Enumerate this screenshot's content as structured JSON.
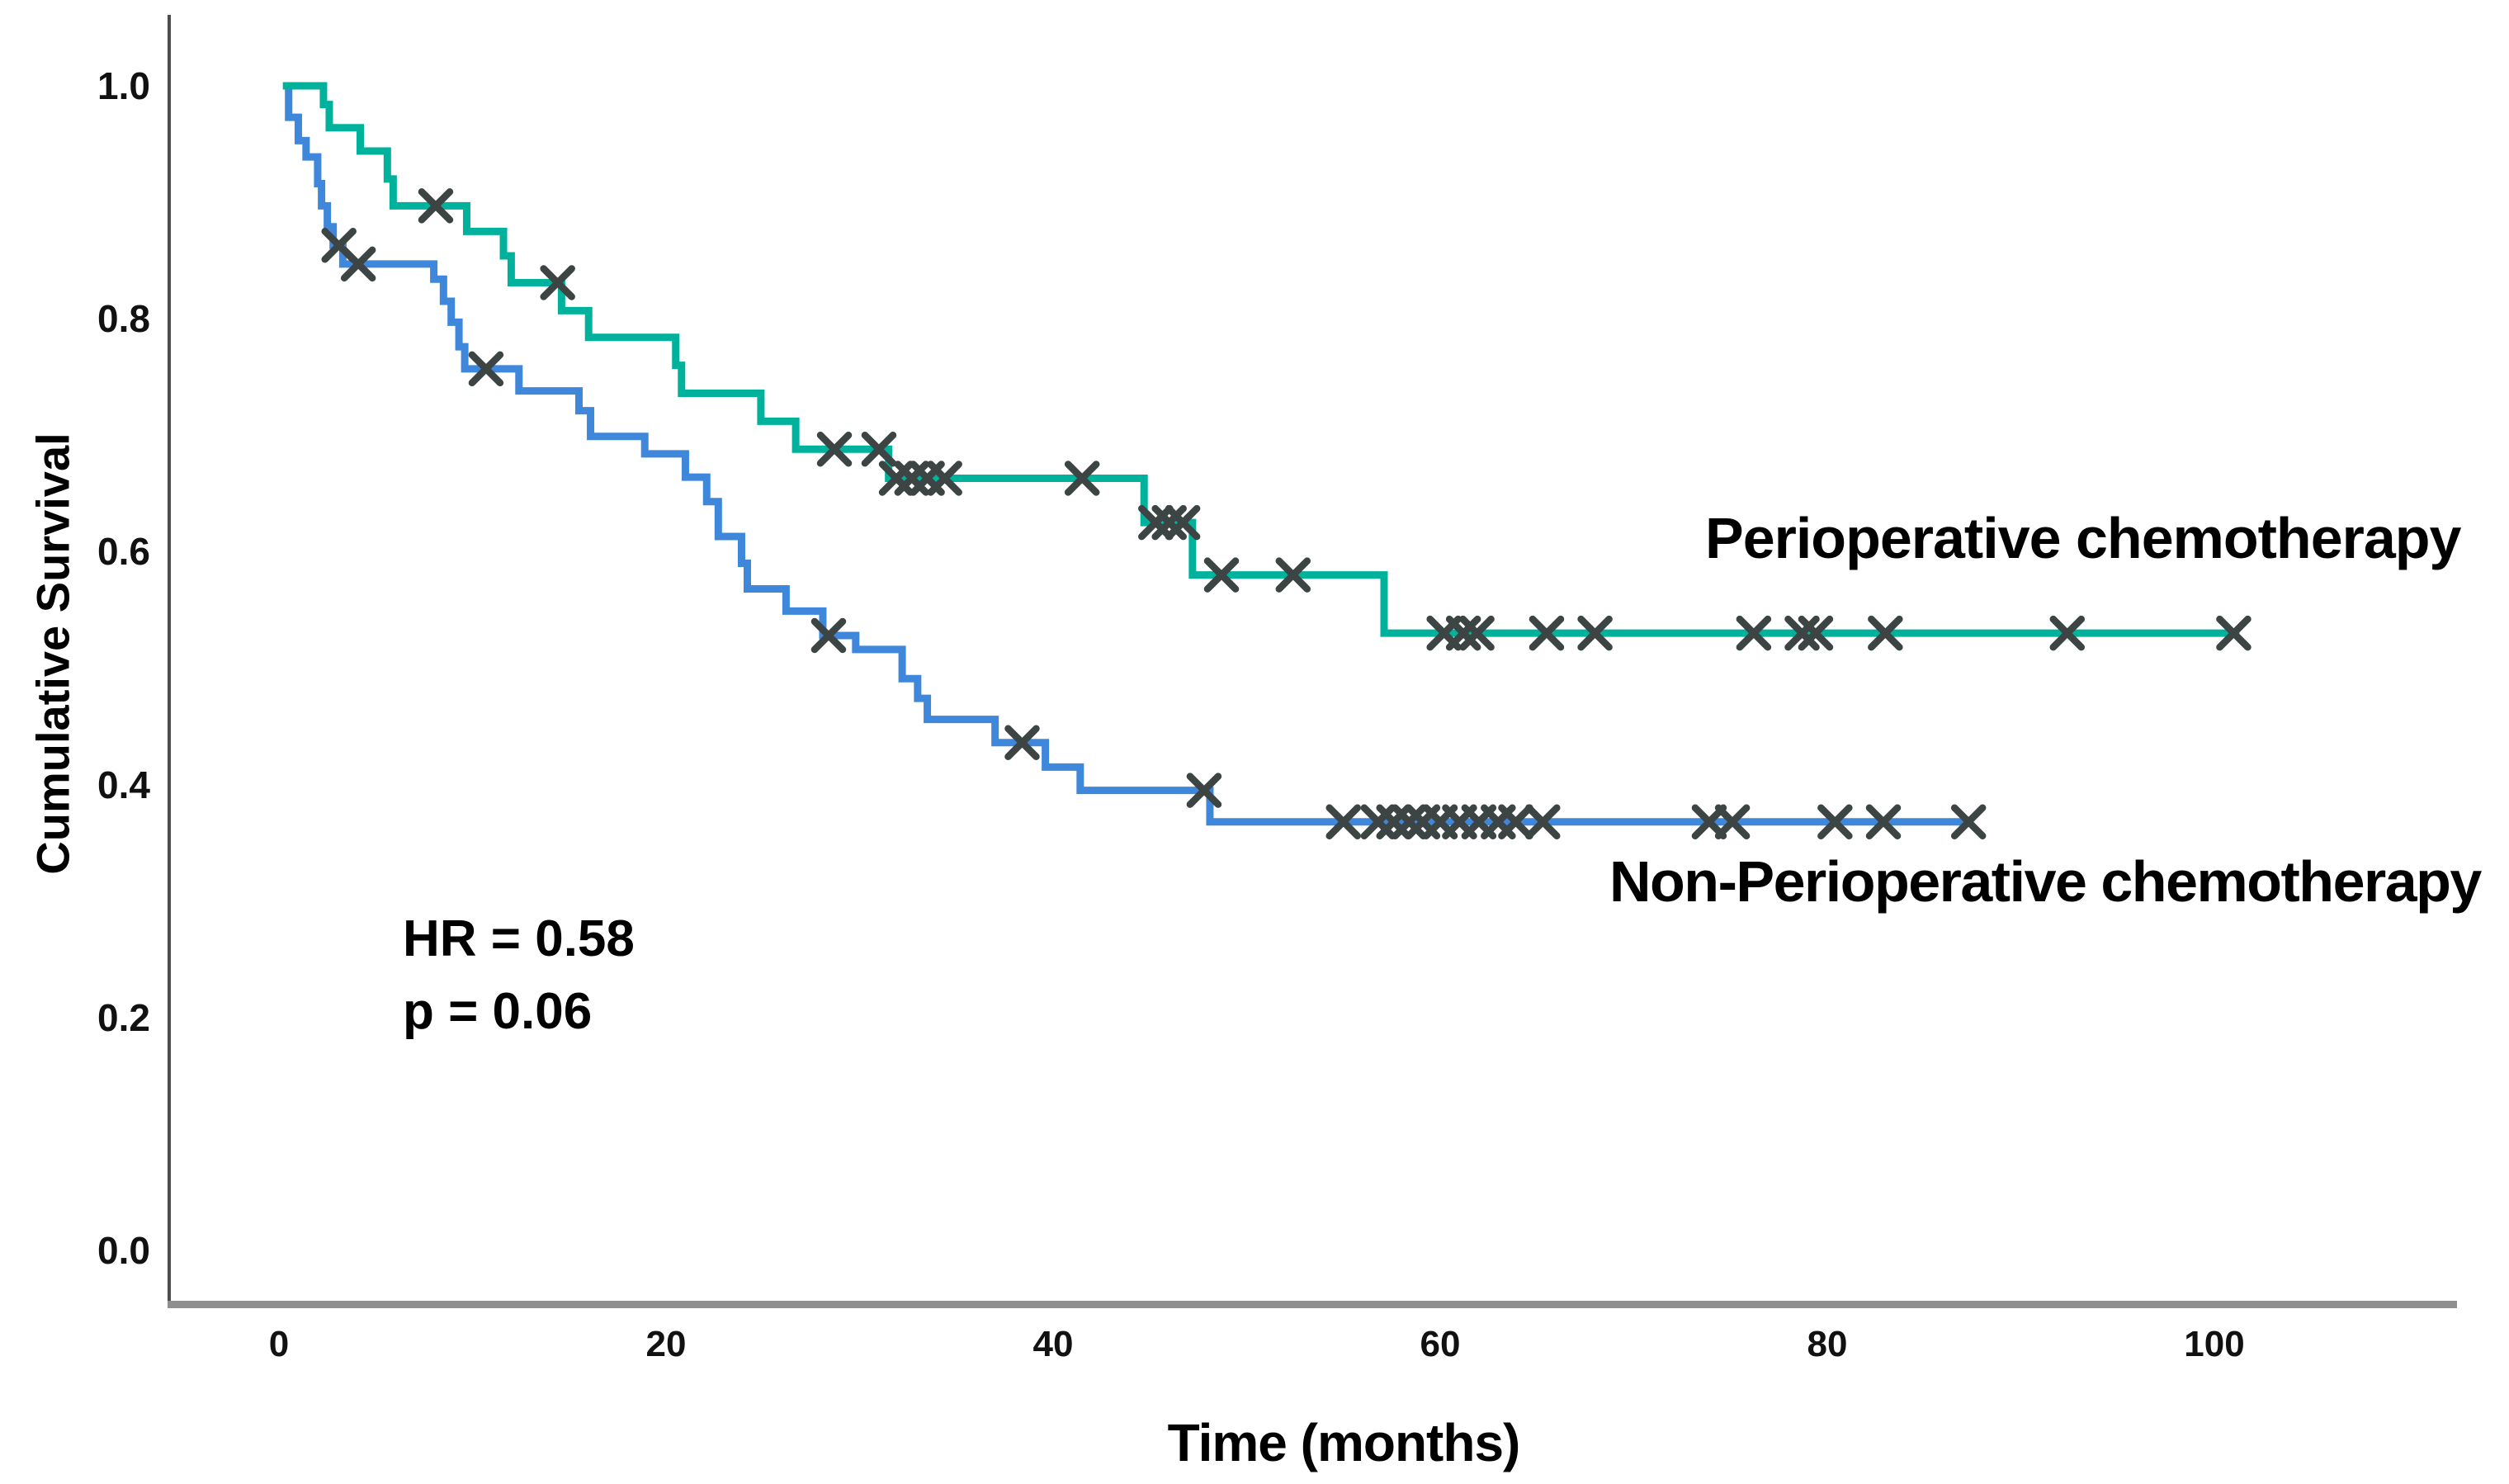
{
  "figure": {
    "y_axis_title": "Cumulative Survival",
    "x_axis_title": "Time (months)",
    "annotation": {
      "line1": "HR = 0.58",
      "line2": "p = 0.06"
    },
    "colors": {
      "perioperative_line": "#00b19c",
      "non_perioperative_line": "#3e87db",
      "censor_mark": "#3d4444",
      "y_axis_line": "#4d4d4d",
      "x_axis_line": "#8f8f8f",
      "text": "#000000"
    }
  },
  "chart_data": {
    "type": "line",
    "subtype": "kaplan_meier_step",
    "title": "",
    "xlabel": "Time (months)",
    "ylabel": "Cumulative Survival",
    "xlim": [
      -5.7,
      112.6
    ],
    "ylim": [
      -0.046,
      1.065
    ],
    "grid": false,
    "legend_position": "inline-text-labels",
    "x_ticks": [
      0,
      20,
      40,
      60,
      80,
      100
    ],
    "x_tick_labels": [
      "0",
      "20",
      "40",
      "60",
      "80",
      "100"
    ],
    "y_ticks": [
      1.0,
      0.8,
      0.6,
      0.4,
      0.2,
      0.0
    ],
    "y_tick_labels": [
      "1.0",
      "0.8",
      "0.6",
      "0.4",
      "0.2",
      "0.0"
    ],
    "series": [
      {
        "name": "Non-Perioperative chemotherapy",
        "color": "#3e87db",
        "points": [
          [
            0.3,
            1.0
          ],
          [
            0.5,
            0.973
          ],
          [
            1.0,
            0.953
          ],
          [
            1.4,
            0.939
          ],
          [
            2.0,
            0.916
          ],
          [
            2.2,
            0.897
          ],
          [
            2.5,
            0.879
          ],
          [
            2.8,
            0.863
          ],
          [
            3.3,
            0.847
          ],
          [
            8.0,
            0.834
          ],
          [
            8.5,
            0.815
          ],
          [
            8.9,
            0.797
          ],
          [
            9.3,
            0.776
          ],
          [
            9.6,
            0.757
          ],
          [
            12.4,
            0.738
          ],
          [
            15.5,
            0.721
          ],
          [
            16.1,
            0.699
          ],
          [
            18.9,
            0.684
          ],
          [
            21.0,
            0.664
          ],
          [
            22.1,
            0.643
          ],
          [
            22.7,
            0.613
          ],
          [
            23.9,
            0.59
          ],
          [
            24.2,
            0.568
          ],
          [
            26.2,
            0.549
          ],
          [
            28.1,
            0.528
          ],
          [
            29.8,
            0.516
          ],
          [
            32.2,
            0.491
          ],
          [
            33.0,
            0.474
          ],
          [
            33.5,
            0.456
          ],
          [
            37.0,
            0.436
          ],
          [
            39.6,
            0.415
          ],
          [
            41.4,
            0.395
          ],
          [
            48.1,
            0.368
          ]
        ],
        "end_time": 87.5,
        "censors": [
          [
            3.1,
            0.863
          ],
          [
            4.1,
            0.847
          ],
          [
            10.7,
            0.757
          ],
          [
            28.4,
            0.528
          ],
          [
            38.4,
            0.436
          ],
          [
            47.8,
            0.395
          ],
          [
            55.0,
            0.368
          ],
          [
            56.8,
            0.368
          ],
          [
            57.6,
            0.368
          ],
          [
            58.4,
            0.368
          ],
          [
            59.1,
            0.368
          ],
          [
            60.0,
            0.368
          ],
          [
            61.0,
            0.368
          ],
          [
            62.0,
            0.368
          ],
          [
            63.0,
            0.368
          ],
          [
            63.9,
            0.368
          ],
          [
            65.3,
            0.368
          ],
          [
            73.9,
            0.368
          ],
          [
            75.1,
            0.368
          ],
          [
            80.4,
            0.368
          ],
          [
            82.9,
            0.368
          ],
          [
            87.3,
            0.368
          ]
        ]
      },
      {
        "name": "Perioperative chemotherapy",
        "color": "#00b19c",
        "points": [
          [
            0.2,
            1.0
          ],
          [
            2.3,
            0.984
          ],
          [
            2.6,
            0.964
          ],
          [
            4.2,
            0.944
          ],
          [
            5.6,
            0.92
          ],
          [
            5.9,
            0.897
          ],
          [
            9.7,
            0.875
          ],
          [
            11.6,
            0.854
          ],
          [
            12.0,
            0.831
          ],
          [
            14.6,
            0.807
          ],
          [
            16.0,
            0.784
          ],
          [
            20.5,
            0.76
          ],
          [
            20.8,
            0.736
          ],
          [
            24.9,
            0.712
          ],
          [
            26.7,
            0.688
          ],
          [
            31.5,
            0.663
          ],
          [
            44.7,
            0.625
          ],
          [
            47.2,
            0.58
          ],
          [
            57.1,
            0.53
          ]
        ],
        "end_time": 101.3,
        "censors": [
          [
            8.1,
            0.897
          ],
          [
            14.4,
            0.831
          ],
          [
            28.7,
            0.688
          ],
          [
            31.0,
            0.688
          ],
          [
            31.9,
            0.663
          ],
          [
            32.7,
            0.663
          ],
          [
            33.5,
            0.663
          ],
          [
            34.4,
            0.663
          ],
          [
            41.5,
            0.663
          ],
          [
            45.3,
            0.625
          ],
          [
            46.0,
            0.625
          ],
          [
            46.7,
            0.625
          ],
          [
            48.7,
            0.58
          ],
          [
            52.4,
            0.58
          ],
          [
            60.2,
            0.53
          ],
          [
            61.2,
            0.53
          ],
          [
            61.9,
            0.53
          ],
          [
            65.5,
            0.53
          ],
          [
            68.0,
            0.53
          ],
          [
            76.2,
            0.53
          ],
          [
            78.7,
            0.53
          ],
          [
            79.4,
            0.53
          ],
          [
            83.0,
            0.53
          ],
          [
            92.4,
            0.53
          ],
          [
            101.0,
            0.53
          ]
        ]
      }
    ],
    "annotations": [
      "HR = 0.58",
      "p = 0.06"
    ]
  }
}
